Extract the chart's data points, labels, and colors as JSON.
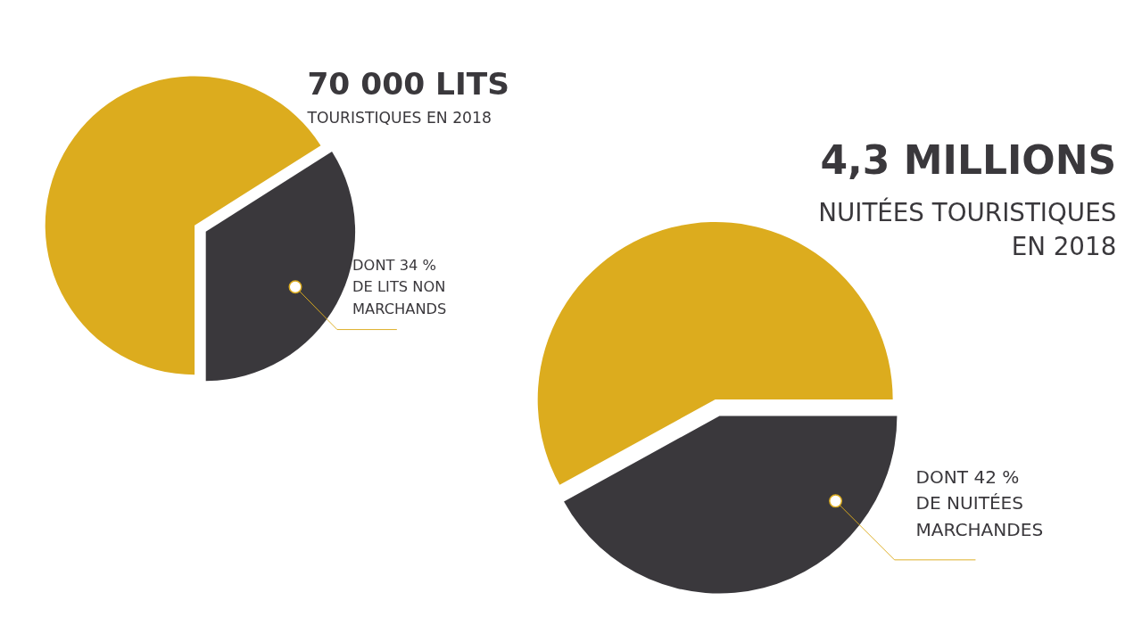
{
  "chart_data": [
    {
      "type": "pie",
      "title": "70 000 LITS",
      "subtitle": "TOURISTIQUES EN 2018",
      "categories": [
        null,
        null
      ],
      "values": [
        66,
        34
      ],
      "colors": [
        "#dcac1e",
        "#3a383c"
      ],
      "legend": false,
      "annotations": [
        "DONT 34 %\nDE LITS NON\nMARCHANDS"
      ]
    },
    {
      "type": "pie",
      "title": "4,3 MILLIONS",
      "subtitle": "NUITÉES TOURISTIQUES\nEN 2018",
      "categories": [
        null,
        null
      ],
      "values": [
        58,
        42
      ],
      "colors": [
        "#dcac1e",
        "#3a383c"
      ],
      "legend": false,
      "annotations": [
        "DONT 42 %\nDE NUITÉES\nMARCHANDES"
      ]
    }
  ]
}
